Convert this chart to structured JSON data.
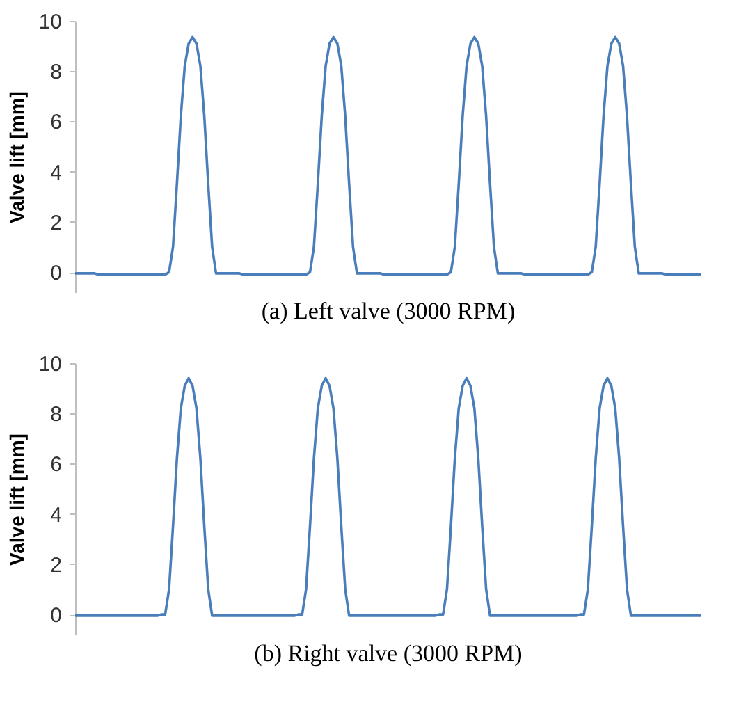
{
  "chart_data": [
    {
      "type": "line",
      "title": "(a) Left valve (3000 RPM)",
      "ylabel": "Valve lift [mm]",
      "ylim": [
        -0.8,
        10
      ],
      "yticks": [
        0,
        2,
        4,
        6,
        8,
        10
      ],
      "grid": false,
      "tick_labels": "y",
      "line_style": "solid",
      "marker": "none",
      "categories": [
        null,
        null,
        null,
        null,
        null,
        null,
        null,
        null,
        null,
        null,
        null,
        null,
        null,
        null,
        null,
        null,
        null,
        null,
        null,
        null,
        null,
        null,
        null,
        null,
        null,
        null,
        null,
        null,
        null,
        null,
        null,
        null,
        null,
        null,
        null,
        null,
        null,
        null,
        null,
        null,
        null,
        null,
        null,
        null,
        null,
        null,
        null,
        null,
        null,
        null,
        null,
        null,
        null,
        null,
        null,
        null,
        null,
        null,
        null,
        null,
        null,
        null,
        null,
        null,
        null,
        null,
        null,
        null,
        null,
        null,
        null,
        null,
        null,
        null,
        null,
        null,
        null,
        null,
        null,
        null,
        null,
        null,
        null,
        null,
        null,
        null,
        null,
        null,
        null,
        null,
        null,
        null,
        null,
        null,
        null,
        null,
        null,
        null,
        null,
        null,
        null,
        null,
        null,
        null,
        null,
        null,
        null,
        null,
        null,
        null,
        null,
        null,
        null,
        null,
        null,
        null,
        null,
        null,
        null,
        null,
        null,
        null,
        null,
        null,
        null,
        null,
        null,
        null,
        null,
        null,
        null,
        null,
        null,
        null,
        null,
        null,
        null,
        null,
        null,
        null,
        null,
        null,
        null,
        null,
        null,
        null,
        null,
        null,
        null,
        null,
        null,
        null,
        null,
        null,
        null,
        null,
        null,
        null,
        null,
        null,
        null
      ],
      "series": [
        {
          "color": "#4a7ebb",
          "values": [
            -0.05,
            -0.05,
            -0.05,
            -0.05,
            -0.05,
            -0.05,
            -0.1,
            -0.1,
            -0.1,
            -0.1,
            -0.1,
            -0.1,
            -0.1,
            -0.1,
            -0.1,
            -0.1,
            -0.1,
            -0.1,
            -0.1,
            -0.1,
            -0.1,
            -0.1,
            -0.1,
            -0.1,
            0,
            1.0,
            3.5,
            6.2,
            8.2,
            9.1,
            9.35,
            9.1,
            8.2,
            6.2,
            3.5,
            1.0,
            -0.05,
            -0.05,
            -0.05,
            -0.05,
            -0.05,
            -0.05,
            -0.05,
            -0.1,
            -0.1,
            -0.1,
            -0.1,
            -0.1,
            -0.1,
            -0.1,
            -0.1,
            -0.1,
            -0.1,
            -0.1,
            -0.1,
            -0.1,
            -0.1,
            -0.1,
            -0.1,
            -0.1,
            0,
            1.0,
            3.5,
            6.2,
            8.2,
            9.1,
            9.35,
            9.1,
            8.2,
            6.2,
            3.5,
            1.0,
            -0.05,
            -0.05,
            -0.05,
            -0.05,
            -0.05,
            -0.05,
            -0.05,
            -0.1,
            -0.1,
            -0.1,
            -0.1,
            -0.1,
            -0.1,
            -0.1,
            -0.1,
            -0.1,
            -0.1,
            -0.1,
            -0.1,
            -0.1,
            -0.1,
            -0.1,
            -0.1,
            -0.1,
            0,
            1.0,
            3.5,
            6.2,
            8.2,
            9.1,
            9.35,
            9.1,
            8.2,
            6.2,
            3.5,
            1.0,
            -0.05,
            -0.05,
            -0.05,
            -0.05,
            -0.05,
            -0.05,
            -0.05,
            -0.1,
            -0.1,
            -0.1,
            -0.1,
            -0.1,
            -0.1,
            -0.1,
            -0.1,
            -0.1,
            -0.1,
            -0.1,
            -0.1,
            -0.1,
            -0.1,
            -0.1,
            -0.1,
            -0.1,
            0,
            1.0,
            3.5,
            6.2,
            8.2,
            9.1,
            9.35,
            9.1,
            8.2,
            6.2,
            3.5,
            1.0,
            -0.05,
            -0.05,
            -0.05,
            -0.05,
            -0.05,
            -0.05,
            -0.05,
            -0.1,
            -0.1,
            -0.1,
            -0.1,
            -0.1,
            -0.1,
            -0.1,
            -0.1,
            -0.1,
            -0.1
          ]
        }
      ]
    },
    {
      "type": "line",
      "title": "(b) Right valve (3000 RPM)",
      "ylabel": "Valve lift [mm]",
      "ylim": [
        -0.8,
        10
      ],
      "yticks": [
        0,
        2,
        4,
        6,
        8,
        10
      ],
      "grid": false,
      "tick_labels": "y",
      "line_style": "solid",
      "marker": "none",
      "categories": [
        null,
        null,
        null,
        null,
        null,
        null,
        null,
        null,
        null,
        null,
        null,
        null,
        null,
        null,
        null,
        null,
        null,
        null,
        null,
        null,
        null,
        null,
        null,
        null,
        null,
        null,
        null,
        null,
        null,
        null,
        null,
        null,
        null,
        null,
        null,
        null,
        null,
        null,
        null,
        null,
        null,
        null,
        null,
        null,
        null,
        null,
        null,
        null,
        null,
        null,
        null,
        null,
        null,
        null,
        null,
        null,
        null,
        null,
        null,
        null,
        null,
        null,
        null,
        null,
        null,
        null,
        null,
        null,
        null,
        null,
        null,
        null,
        null,
        null,
        null,
        null,
        null,
        null,
        null,
        null,
        null,
        null,
        null,
        null,
        null,
        null,
        null,
        null,
        null,
        null,
        null,
        null,
        null,
        null,
        null,
        null,
        null,
        null,
        null,
        null,
        null,
        null,
        null,
        null,
        null,
        null,
        null,
        null,
        null,
        null,
        null,
        null,
        null,
        null,
        null,
        null,
        null,
        null,
        null,
        null,
        null,
        null,
        null,
        null,
        null,
        null,
        null,
        null,
        null,
        null,
        null,
        null,
        null,
        null,
        null,
        null,
        null,
        null,
        null,
        null,
        null,
        null,
        null,
        null,
        null,
        null,
        null,
        null,
        null,
        null,
        null,
        null,
        null,
        null,
        null,
        null,
        null,
        null,
        null,
        null,
        null
      ],
      "series": [
        {
          "color": "#4a7ebb",
          "values": [
            -0.05,
            -0.05,
            -0.05,
            -0.05,
            -0.05,
            -0.05,
            -0.05,
            -0.05,
            -0.05,
            -0.05,
            -0.05,
            -0.05,
            -0.05,
            -0.05,
            -0.05,
            -0.05,
            -0.05,
            -0.05,
            -0.05,
            -0.05,
            -0.05,
            -0.05,
            0,
            0,
            1.0,
            3.5,
            6.2,
            8.2,
            9.1,
            9.4,
            9.1,
            8.2,
            6.2,
            3.5,
            1.0,
            -0.05,
            -0.05,
            -0.05,
            -0.05,
            -0.05,
            -0.05,
            -0.05,
            -0.05,
            -0.05,
            -0.05,
            -0.05,
            -0.05,
            -0.05,
            -0.05,
            -0.05,
            -0.05,
            -0.05,
            -0.05,
            -0.05,
            -0.05,
            -0.05,
            -0.05,
            0,
            0,
            1.0,
            3.5,
            6.2,
            8.2,
            9.1,
            9.4,
            9.1,
            8.2,
            6.2,
            3.5,
            1.0,
            -0.05,
            -0.05,
            -0.05,
            -0.05,
            -0.05,
            -0.05,
            -0.05,
            -0.05,
            -0.05,
            -0.05,
            -0.05,
            -0.05,
            -0.05,
            -0.05,
            -0.05,
            -0.05,
            -0.05,
            -0.05,
            -0.05,
            -0.05,
            -0.05,
            -0.05,
            -0.05,
            0,
            0,
            1.0,
            3.5,
            6.2,
            8.2,
            9.1,
            9.4,
            9.1,
            8.2,
            6.2,
            3.5,
            1.0,
            -0.05,
            -0.05,
            -0.05,
            -0.05,
            -0.05,
            -0.05,
            -0.05,
            -0.05,
            -0.05,
            -0.05,
            -0.05,
            -0.05,
            -0.05,
            -0.05,
            -0.05,
            -0.05,
            -0.05,
            -0.05,
            -0.05,
            -0.05,
            -0.05,
            -0.05,
            -0.05,
            0,
            0,
            1.0,
            3.5,
            6.2,
            8.2,
            9.1,
            9.4,
            9.1,
            8.2,
            6.2,
            3.5,
            1.0,
            -0.05,
            -0.05,
            -0.05,
            -0.05,
            -0.05,
            -0.05,
            -0.05,
            -0.05,
            -0.05,
            -0.05,
            -0.05,
            -0.05,
            -0.05,
            -0.05,
            -0.05,
            -0.05,
            -0.05,
            -0.05,
            -0.05
          ]
        }
      ]
    }
  ]
}
